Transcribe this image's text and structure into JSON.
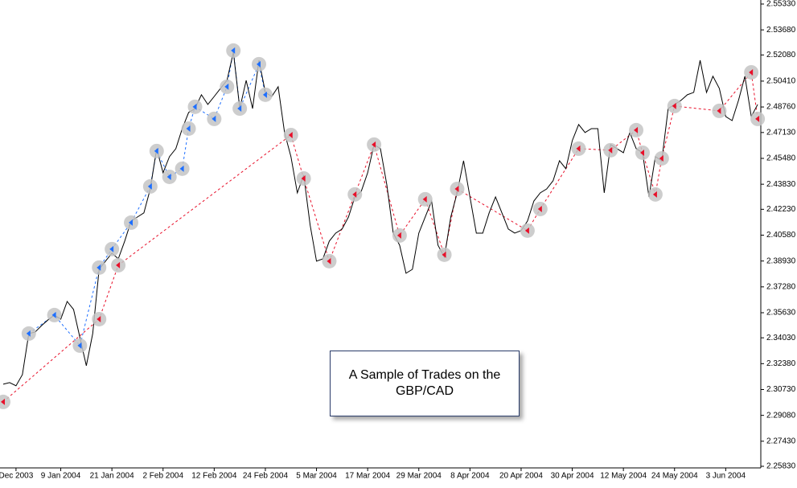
{
  "chart_data": {
    "type": "line",
    "annotation": "A Sample of Trades on the GBP/CAD",
    "categories": [
      null,
      null,
      "Dec 2003",
      null,
      null,
      null,
      null,
      null,
      null,
      "9 Jan 2004",
      null,
      null,
      null,
      null,
      null,
      null,
      null,
      "21 Jan 2004",
      null,
      null,
      null,
      null,
      null,
      null,
      null,
      "2 Feb 2004",
      null,
      null,
      null,
      null,
      null,
      null,
      null,
      "12 Feb 2004",
      null,
      null,
      null,
      null,
      null,
      null,
      null,
      "24 Feb 2004",
      null,
      null,
      null,
      null,
      null,
      null,
      null,
      "5 Mar 2004",
      null,
      null,
      null,
      null,
      null,
      null,
      null,
      "17 Mar 2004",
      null,
      null,
      null,
      null,
      null,
      null,
      null,
      "29 Mar 2004",
      null,
      null,
      null,
      null,
      null,
      null,
      null,
      "8 Apr 2004",
      null,
      null,
      null,
      null,
      null,
      null,
      null,
      "20 Apr 2004",
      null,
      null,
      null,
      null,
      null,
      null,
      null,
      "30 Apr 2004",
      null,
      null,
      null,
      null,
      null,
      null,
      null,
      "12 May 2004",
      null,
      null,
      null,
      null,
      null,
      null,
      null,
      "24 May 2004",
      null,
      null,
      null,
      null,
      null,
      null,
      null,
      "3 Jun 2004",
      null,
      null,
      null,
      null,
      null
    ],
    "series": [
      {
        "color": "#000000",
        "values": [
          2.3107,
          2.3117,
          2.3097,
          2.3168,
          2.343,
          2.344,
          2.3481,
          2.3517,
          2.3548,
          2.3522,
          2.3635,
          2.3584,
          2.3404,
          2.3225,
          2.343,
          2.384,
          2.3892,
          2.3943,
          2.3907,
          2.402,
          2.4148,
          2.4174,
          2.42,
          2.4353,
          2.461,
          2.4456,
          2.4559,
          2.461,
          2.4738,
          2.4841,
          2.4866,
          2.4954,
          2.4892,
          2.4943,
          2.4995,
          2.5046,
          2.5226,
          2.4866,
          2.5046,
          2.4866,
          2.5174,
          2.4969,
          2.4943,
          2.5005,
          2.4713,
          2.4559,
          2.4328,
          2.4441,
          2.4123,
          2.3892,
          2.3907,
          2.402,
          2.4071,
          2.4097,
          2.4174,
          2.4302,
          2.4338,
          2.4456,
          2.4636,
          2.461,
          2.4379,
          2.4071,
          2.3994,
          2.3815,
          2.384,
          2.4071,
          2.4174,
          2.4276,
          2.3994,
          2.3917,
          2.4174,
          2.4328,
          2.4533,
          2.4302,
          2.4071,
          2.4071,
          2.42,
          2.4302,
          2.42,
          2.4097,
          2.4071,
          2.4087,
          2.4148,
          2.4276,
          2.4328,
          2.4353,
          2.4405,
          2.4533,
          2.4482,
          2.4661,
          2.4764,
          2.4713,
          2.4738,
          2.4738,
          2.4328,
          2.4636,
          2.461,
          2.4584,
          2.4713,
          2.461,
          2.4584,
          2.4302,
          2.4559,
          2.4533,
          2.4866,
          2.4892,
          2.4918,
          2.4954,
          2.4969,
          2.5174,
          2.4969,
          2.5072,
          2.4995,
          2.4815,
          2.4789,
          2.4918,
          2.5072,
          2.4815,
          2.4892
        ]
      }
    ],
    "markers": [
      {
        "color": "#1e6fff",
        "x": [
          4,
          8,
          12,
          15,
          17,
          20,
          23,
          24,
          26,
          28,
          29,
          30,
          33,
          35,
          36,
          37,
          40,
          41
        ],
        "values": [
          2.343,
          2.3548,
          2.3353,
          2.3851,
          2.3969,
          2.4138,
          2.4369,
          2.4595,
          2.443,
          2.4482,
          2.4738,
          2.4877,
          2.48,
          2.5005,
          2.5236,
          2.4866,
          2.5149,
          2.4954
        ]
      },
      {
        "color": "#e8102a",
        "x": [
          0,
          15,
          18,
          45,
          47,
          51,
          55,
          58,
          62,
          66,
          69,
          71,
          82,
          84,
          90,
          95,
          99,
          100,
          102,
          103,
          105,
          112,
          117,
          118
        ],
        "values": [
          2.2994,
          2.3522,
          2.3866,
          2.4697,
          2.442,
          2.3892,
          2.4318,
          2.4636,
          2.4056,
          2.4287,
          2.3933,
          2.4353,
          2.4087,
          2.4225,
          2.461,
          2.46,
          2.4728,
          2.4584,
          2.4318,
          2.4548,
          2.4882,
          2.4851,
          2.5097,
          2.48
        ]
      }
    ],
    "ylim": [
      2.2583,
      2.5533
    ],
    "yticks": [
      {
        "value": 2.5533,
        "label": "2.55330"
      },
      {
        "value": 2.5368,
        "label": "2.53680"
      },
      {
        "value": 2.5208,
        "label": "2.52080"
      },
      {
        "value": 2.5041,
        "label": "2.50410"
      },
      {
        "value": 2.4876,
        "label": "2.48760"
      },
      {
        "value": 2.4713,
        "label": "2.47130"
      },
      {
        "value": 2.4548,
        "label": "2.45480"
      },
      {
        "value": 2.4383,
        "label": "2.43830"
      },
      {
        "value": 2.4223,
        "label": "2.42230"
      },
      {
        "value": 2.4058,
        "label": "2.40580"
      },
      {
        "value": 2.3893,
        "label": "2.38930"
      },
      {
        "value": 2.3728,
        "label": "2.37280"
      },
      {
        "value": 2.3563,
        "label": "2.35630"
      },
      {
        "value": 2.3403,
        "label": "2.34030"
      },
      {
        "value": 2.3238,
        "label": "2.32380"
      },
      {
        "value": 2.3073,
        "label": "2.30730"
      },
      {
        "value": 2.2908,
        "label": "2.29080"
      },
      {
        "value": 2.2743,
        "label": "2.27430"
      },
      {
        "value": 2.2583,
        "label": "2.25830"
      }
    ],
    "grid": false
  }
}
